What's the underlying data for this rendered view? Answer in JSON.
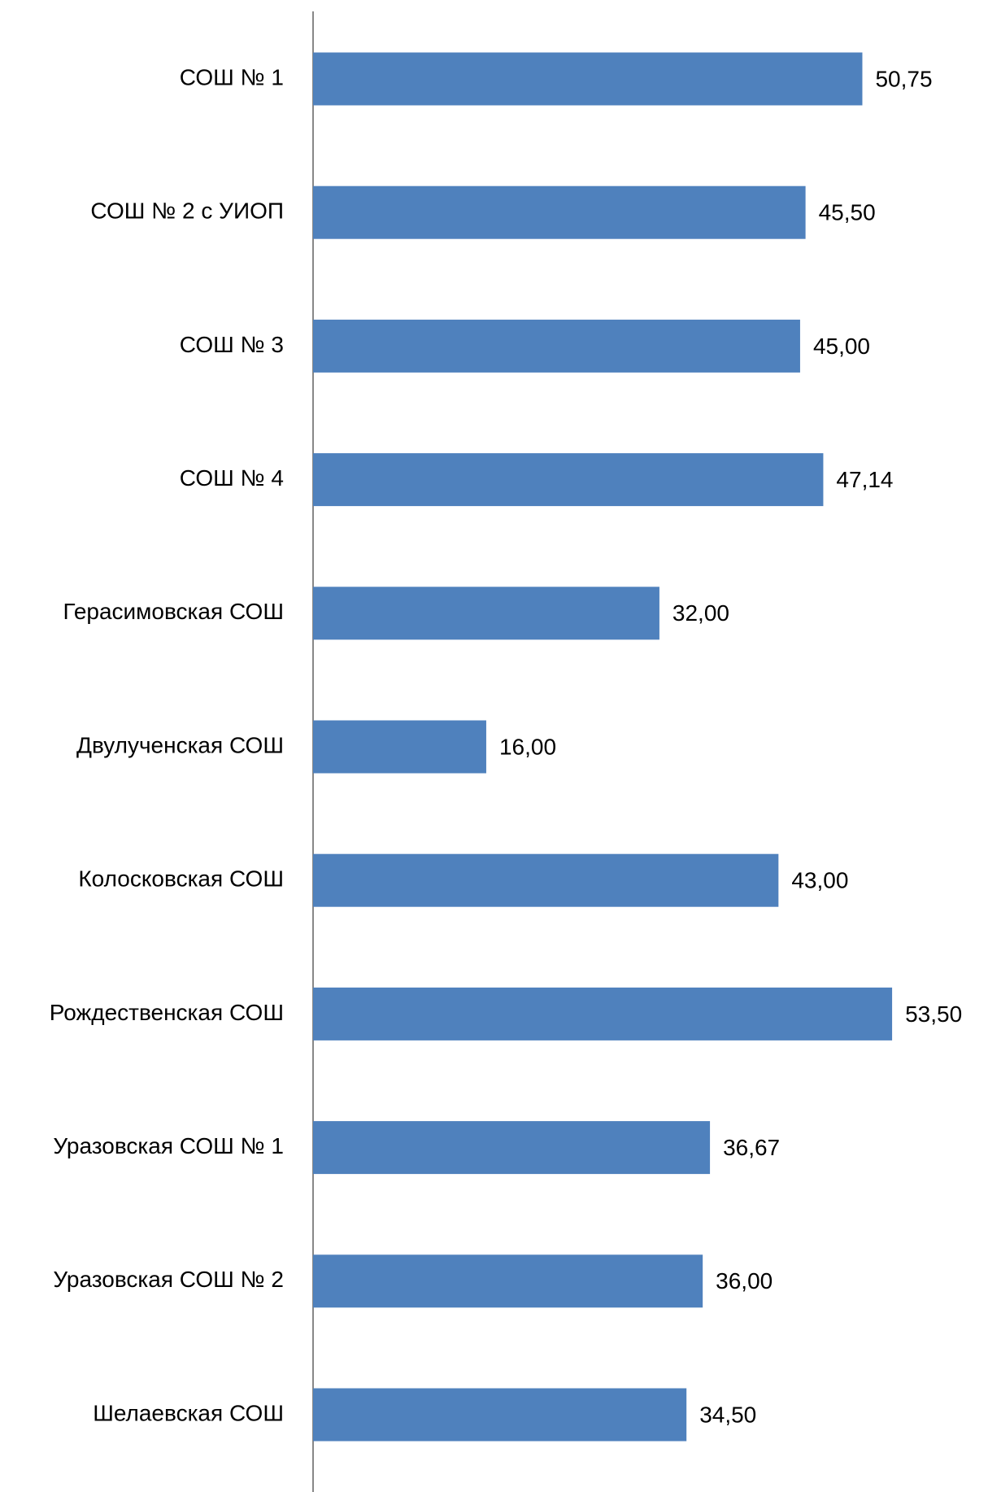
{
  "chart_data": {
    "type": "barh",
    "categories": [
      "СОШ № 1",
      "СОШ № 2 с УИОП",
      "СОШ № 3",
      "СОШ № 4",
      "Герасимовская СОШ",
      "Двулученская СОШ",
      "Колосковская СОШ",
      "Рождественская СОШ",
      "Уразовская СОШ № 1",
      "Уразовская СОШ № 2",
      "Шелаевская СОШ"
    ],
    "values": [
      50.75,
      45.5,
      45,
      47.14,
      32,
      16,
      43,
      53.5,
      36.67,
      36,
      34.5
    ],
    "value_labels": [
      "50,75",
      "45,50",
      "45,00",
      "47,14",
      "32,00",
      "16,00",
      "43,00",
      "53,50",
      "36,67",
      "36,00",
      "34,50"
    ],
    "color": "#4f81bd"
  }
}
